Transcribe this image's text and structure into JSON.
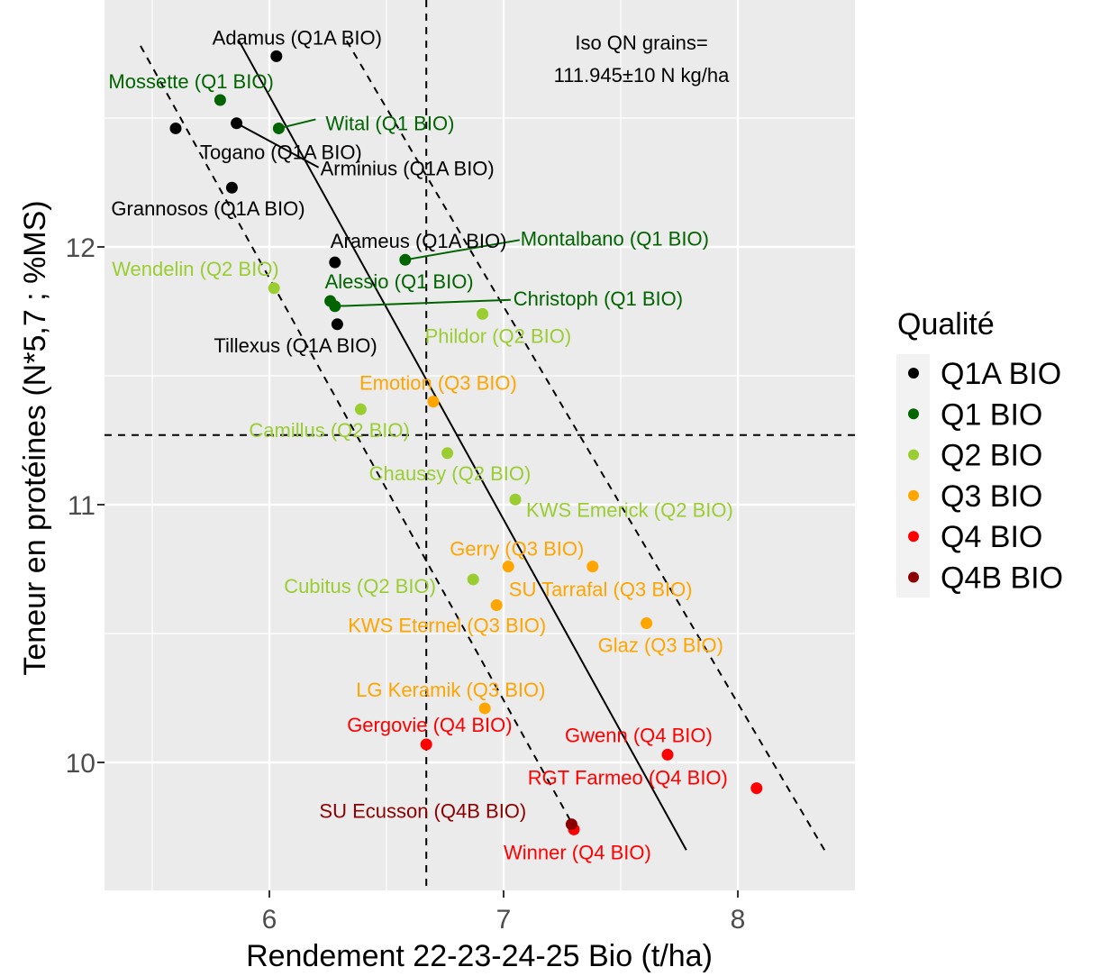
{
  "chart_data": {
    "type": "scatter",
    "xlabel": "Rendement 22-23-24-25 Bio (t/ha)",
    "ylabel": "Teneur en protéines (N*5,7 ; %MS)",
    "xlim": [
      5.28,
      8.5
    ],
    "ylim": [
      9.48,
      12.9
    ],
    "xticks": [
      6,
      7,
      8
    ],
    "yticks": [
      10,
      11,
      12
    ],
    "grid": true,
    "legend_position": "right",
    "legend_title": "Qualité",
    "mean_x": 6.67,
    "mean_y": 11.27,
    "annotation": [
      "Iso QN grains=",
      "111.945±10 N kg/ha"
    ],
    "iso_curves": [
      {
        "style": "solid",
        "x": [
          5.87,
          7.78
        ],
        "y": [
          12.8,
          9.66
        ]
      },
      {
        "style": "dashed",
        "x": [
          5.45,
          7.3
        ],
        "y": [
          12.78,
          9.75
        ]
      },
      {
        "style": "dashed",
        "x": [
          6.33,
          8.37
        ],
        "y": [
          12.8,
          9.66
        ]
      }
    ],
    "series": [
      {
        "name": "Q1A BIO",
        "color": "#000000",
        "points": [
          {
            "label": "Adamus (Q1A BIO)",
            "x": 6.03,
            "y": 12.74
          },
          {
            "label": "Togano (Q1A BIO)",
            "x": 5.6,
            "y": 12.46
          },
          {
            "label": "Arminius (Q1A BIO)",
            "x": 5.86,
            "y": 12.48
          },
          {
            "label": "Grannosos (Q1A BIO)",
            "x": 5.84,
            "y": 12.23
          },
          {
            "label": "Arameus (Q1A BIO)",
            "x": 6.28,
            "y": 11.94
          },
          {
            "label": "Tillexus (Q1A BIO)",
            "x": 6.29,
            "y": 11.7
          }
        ]
      },
      {
        "name": "Q1 BIO",
        "color": "#006400",
        "points": [
          {
            "label": "Mossette (Q1 BIO)",
            "x": 5.79,
            "y": 12.57
          },
          {
            "label": "Wital (Q1 BIO)",
            "x": 6.04,
            "y": 12.46
          },
          {
            "label": "Montalbano (Q1 BIO)",
            "x": 6.58,
            "y": 11.95
          },
          {
            "label": "Alessio (Q1 BIO)",
            "x": 6.26,
            "y": 11.79
          },
          {
            "label": "Christoph  (Q1 BIO)",
            "x": 6.28,
            "y": 11.77
          }
        ]
      },
      {
        "name": "Q2 BIO",
        "color": "#9ACD32",
        "points": [
          {
            "label": "Wendelin (Q2 BIO)",
            "x": 6.02,
            "y": 11.84
          },
          {
            "label": "Phildor (Q2 BIO)",
            "x": 6.91,
            "y": 11.74
          },
          {
            "label": "Camillus (Q2 BIO)",
            "x": 6.39,
            "y": 11.37
          },
          {
            "label": "Chaussy (Q2 BIO)",
            "x": 6.76,
            "y": 11.2
          },
          {
            "label": "KWS Emerick (Q2 BIO)",
            "x": 7.05,
            "y": 11.02
          },
          {
            "label": "Cubitus (Q2 BIO)",
            "x": 6.87,
            "y": 10.71
          }
        ]
      },
      {
        "name": "Q3 BIO",
        "color": "#FFA500",
        "points": [
          {
            "label": "Emotion (Q3 BIO)",
            "x": 6.7,
            "y": 11.4
          },
          {
            "label": "Gerry (Q3 BIO)",
            "x": 7.02,
            "y": 10.76
          },
          {
            "label": "SU Tarrafal (Q3 BIO)",
            "x": 7.38,
            "y": 10.76
          },
          {
            "label": "KWS Eternel (Q3 BIO)",
            "x": 6.97,
            "y": 10.61
          },
          {
            "label": "Glaz (Q3 BIO)",
            "x": 7.61,
            "y": 10.54
          },
          {
            "label": "LG Keramik (Q3 BIO)",
            "x": 6.92,
            "y": 10.21
          }
        ]
      },
      {
        "name": "Q4 BIO",
        "color": "#FF0000",
        "points": [
          {
            "label": "Gergovie (Q4 BIO)",
            "x": 6.67,
            "y": 10.07
          },
          {
            "label": "Gwenn (Q4 BIO)",
            "x": 7.7,
            "y": 10.03
          },
          {
            "label": "RGT Farmeo (Q4 BIO)",
            "x": 8.08,
            "y": 9.9
          },
          {
            "label": "Winner (Q4 BIO)",
            "x": 7.3,
            "y": 9.74
          }
        ]
      },
      {
        "name": "Q4B BIO",
        "color": "#8B0000",
        "points": [
          {
            "label": "SU Ecusson (Q4B BIO)",
            "x": 7.29,
            "y": 9.76
          }
        ]
      }
    ]
  }
}
